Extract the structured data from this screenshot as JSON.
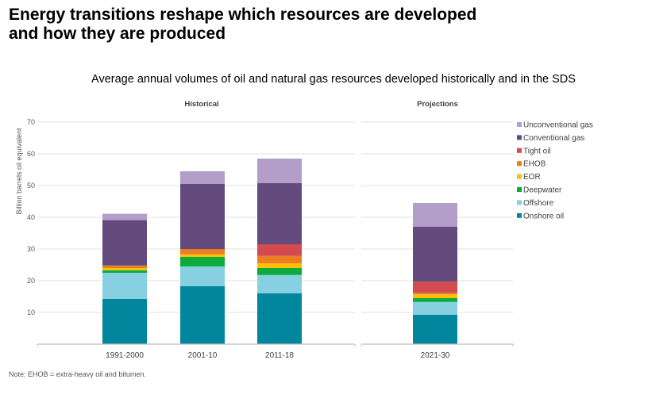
{
  "header": {
    "title_line1": "Energy transitions reshape which resources are developed",
    "title_line2": "and how they are produced"
  },
  "note": "Note: EHOB = extra-heavy oil and bitumen.",
  "chart_data": {
    "type": "bar",
    "stacked": true,
    "title": "Average annual volumes of oil and natural gas resources developed historically and in the SDS",
    "xlabel": "",
    "ylabel": "Billion barrels  oil equivalent",
    "ylim": [
      0,
      70
    ],
    "yticks": [
      10,
      20,
      30,
      40,
      50,
      60,
      70
    ],
    "grid": true,
    "legend_position": "right",
    "panels": [
      {
        "label": "Historical",
        "categories": [
          "1991-2000",
          "2001-10",
          "2011-18"
        ]
      },
      {
        "label": "Projections",
        "categories": [
          "2021-30"
        ]
      }
    ],
    "categories": [
      "1991-2000",
      "2001-10",
      "2011-18",
      "2021-30"
    ],
    "series": [
      {
        "name": "Onshore oil",
        "color": "#00879e",
        "values": [
          14.3,
          18.3,
          16.0,
          9.3
        ]
      },
      {
        "name": "Offshore",
        "color": "#86d0e2",
        "values": [
          8.2,
          6.2,
          5.8,
          4.0
        ]
      },
      {
        "name": "Deepwater",
        "color": "#0daa3e",
        "values": [
          0.8,
          3.0,
          2.2,
          1.2
        ]
      },
      {
        "name": "EOR",
        "color": "#fcbf0d",
        "values": [
          0.7,
          0.8,
          1.5,
          1.2
        ]
      },
      {
        "name": "EHOB",
        "color": "#ec7e24",
        "values": [
          0.8,
          1.7,
          2.3,
          0.5
        ]
      },
      {
        "name": "Tight oil",
        "color": "#d34a4f",
        "values": [
          0.0,
          0.0,
          3.7,
          3.5
        ]
      },
      {
        "name": "Conventional gas",
        "color": "#634b7e",
        "values": [
          14.3,
          20.5,
          19.3,
          17.3
        ]
      },
      {
        "name": "Unconventional gas",
        "color": "#b39dc9",
        "values": [
          2.0,
          4.0,
          7.7,
          7.5
        ]
      }
    ],
    "legend_order": [
      "Unconventional gas",
      "Conventional gas",
      "Tight oil",
      "EHOB",
      "EOR",
      "Deepwater",
      "Offshore",
      "Onshore oil"
    ]
  }
}
